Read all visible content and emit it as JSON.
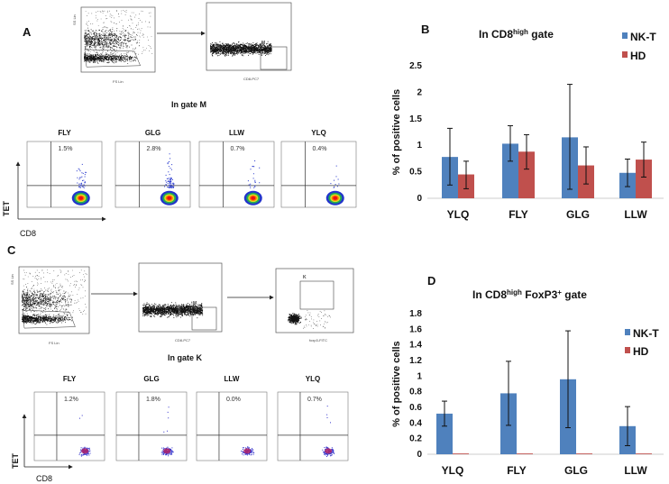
{
  "panels": {
    "A": {
      "label": "A",
      "gate_title": "In gate M",
      "gate_name": "M",
      "axes": {
        "ss": "SS Lin",
        "fs": "FS Lin",
        "cd8": "CD8-PC7"
      },
      "plots": [
        {
          "name": "FLY",
          "pct": "1.5%"
        },
        {
          "name": "GLG",
          "pct": "2.8%"
        },
        {
          "name": "LLW",
          "pct": "0.7%"
        },
        {
          "name": "YLQ",
          "pct": "0.4%"
        }
      ],
      "y_axis": "TET",
      "x_axis": "CD8"
    },
    "C": {
      "label": "C",
      "gate_title": "In gate K",
      "gate_name": "M",
      "gate2_name": "K",
      "axes": {
        "ss": "SS Lin",
        "fs": "FS Lin",
        "cd8": "CD8-PC7",
        "foxp3": "foxp3-FITC"
      },
      "plots": [
        {
          "name": "FLY",
          "pct": "1.2%"
        },
        {
          "name": "GLG",
          "pct": "1.8%"
        },
        {
          "name": "LLW",
          "pct": "0.0%"
        },
        {
          "name": "YLQ",
          "pct": "0.7%"
        }
      ],
      "y_axis": "TET",
      "x_axis": "CD8"
    },
    "B": {
      "label": "B"
    },
    "D": {
      "label": "D"
    }
  },
  "colors": {
    "nkt": "#4f81bd",
    "hd": "#c0504d"
  },
  "chart_data": [
    {
      "type": "bar",
      "title": "In CD8",
      "title_sup": "high",
      "title_rest": " gate",
      "ylabel": "% of positive cells",
      "categories": [
        "YLQ",
        "FLY",
        "GLG",
        "LLW"
      ],
      "ylim": [
        0,
        2.5
      ],
      "yticks": [
        "0",
        "0.5",
        "1",
        "1.5",
        "2",
        "2.5"
      ],
      "legend": "top-right",
      "series": [
        {
          "name": "NK-T",
          "values": [
            0.78,
            1.03,
            1.15,
            0.48
          ],
          "err_low": [
            0.25,
            0.7,
            0.17,
            0.22
          ],
          "err_high": [
            1.32,
            1.37,
            2.15,
            0.74
          ]
        },
        {
          "name": "HD",
          "values": [
            0.45,
            0.88,
            0.62,
            0.73
          ],
          "err_low": [
            0.18,
            0.55,
            0.27,
            0.4
          ],
          "err_high": [
            0.7,
            1.2,
            0.97,
            1.06
          ]
        }
      ]
    },
    {
      "type": "bar",
      "title": "In CD8",
      "title_sup": "high",
      "title_rest": " FoxP3",
      "title_sup2": "+",
      "title_end": " gate",
      "ylabel": "% of positive cells",
      "categories": [
        "YLQ",
        "FLY",
        "GLG",
        "LLW"
      ],
      "ylim": [
        0,
        1.8
      ],
      "yticks": [
        "0",
        "0.2",
        "0.4",
        "0.6",
        "0.8",
        "1",
        "1.2",
        "1.4",
        "1.6",
        "1.8"
      ],
      "legend": "top-right",
      "series": [
        {
          "name": "NK-T",
          "values": [
            0.52,
            0.78,
            0.96,
            0.36
          ],
          "err_low": [
            0.36,
            0.37,
            0.34,
            0.11
          ],
          "err_high": [
            0.68,
            1.19,
            1.58,
            0.61
          ]
        },
        {
          "name": "HD",
          "values": [
            0.01,
            0.01,
            0.01,
            0.01
          ],
          "err_low": [
            0.01,
            0.01,
            0.01,
            0.01
          ],
          "err_high": [
            0.01,
            0.01,
            0.01,
            0.01
          ]
        }
      ]
    }
  ]
}
